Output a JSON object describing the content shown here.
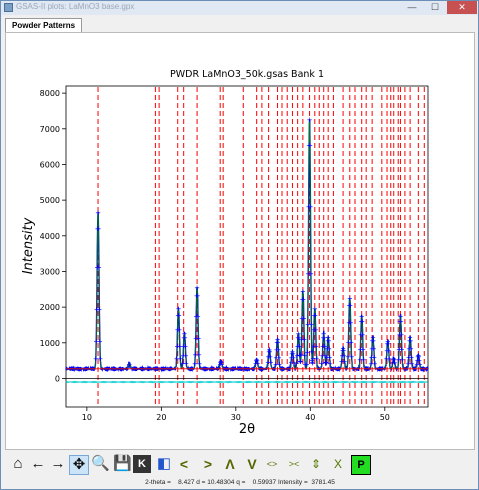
{
  "window": {
    "title": "GSAS-II plots: LaMnO3 base.gpx",
    "minimize_glyph": "—",
    "maximize_glyph": "☐",
    "close_glyph": "✕"
  },
  "tabs": [
    {
      "label": "Powder Patterns"
    }
  ],
  "toolbar": {
    "buttons": [
      {
        "name": "home-icon",
        "glyph": "⌂"
      },
      {
        "name": "back-icon",
        "glyph": "←"
      },
      {
        "name": "forward-icon",
        "glyph": "→"
      },
      {
        "name": "pan-icon",
        "glyph": "✥"
      },
      {
        "name": "zoom-icon",
        "glyph": "🔍"
      },
      {
        "name": "save-icon",
        "glyph": "💾"
      },
      {
        "name": "key-icon",
        "glyph": "K"
      },
      {
        "name": "palette-icon",
        "glyph": "◧"
      },
      {
        "name": "shift-left-icon",
        "glyph": "<"
      },
      {
        "name": "shift-right-icon",
        "glyph": ">"
      },
      {
        "name": "shift-up-icon",
        "glyph": "Λ"
      },
      {
        "name": "shift-down-icon",
        "glyph": "V"
      },
      {
        "name": "expand-x-icon",
        "glyph": "<>"
      },
      {
        "name": "contract-x-icon",
        "glyph": "><"
      },
      {
        "name": "expand-y-icon",
        "glyph": "⇕"
      },
      {
        "name": "contract-y-icon",
        "glyph": "X"
      },
      {
        "name": "publish-icon",
        "glyph": "P"
      }
    ]
  },
  "status": {
    "text": "2-theta =    8.427 d = 10.48304 q =    0.59937 Intensity =  3781.45"
  },
  "colors": {
    "observed": "#0000ff",
    "calculated": "#008000",
    "background": "#ff0000",
    "difference": "#00cccc",
    "reflection_ticks": "#ff0000"
  },
  "chart_data": {
    "type": "line",
    "title": "PWDR LaMnO3_50k.gsas Bank 1",
    "xlabel": "2θ",
    "ylabel": "Intensity",
    "xlim": [
      7.2,
      55.8
    ],
    "ylim": [
      -800,
      8200
    ],
    "xticks": [
      10,
      20,
      30,
      40,
      50
    ],
    "yticks": [
      0,
      1000,
      2000,
      3000,
      4000,
      5000,
      6000,
      7000,
      8000
    ],
    "background_level": 270,
    "difference_offset": -100,
    "zero_line": 0,
    "grid": false,
    "peaks": [
      {
        "x": 11.5,
        "height": 4400
      },
      {
        "x": 15.7,
        "height": 150
      },
      {
        "x": 22.3,
        "height": 1700
      },
      {
        "x": 23.1,
        "height": 1000
      },
      {
        "x": 24.8,
        "height": 2300
      },
      {
        "x": 28.0,
        "height": 230
      },
      {
        "x": 32.8,
        "height": 280
      },
      {
        "x": 34.5,
        "height": 550
      },
      {
        "x": 35.6,
        "height": 850
      },
      {
        "x": 37.6,
        "height": 500
      },
      {
        "x": 38.4,
        "height": 1000
      },
      {
        "x": 39.0,
        "height": 2200
      },
      {
        "x": 39.9,
        "height": 7000
      },
      {
        "x": 40.6,
        "height": 1700
      },
      {
        "x": 41.8,
        "height": 1000
      },
      {
        "x": 42.4,
        "height": 900
      },
      {
        "x": 44.4,
        "height": 600
      },
      {
        "x": 45.3,
        "height": 2000
      },
      {
        "x": 46.9,
        "height": 1500
      },
      {
        "x": 48.4,
        "height": 900
      },
      {
        "x": 50.4,
        "height": 800
      },
      {
        "x": 51.2,
        "height": 300
      },
      {
        "x": 52.1,
        "height": 1500
      },
      {
        "x": 53.4,
        "height": 900
      },
      {
        "x": 54.5,
        "height": 400
      }
    ],
    "reflections": [
      11.5,
      19.2,
      19.7,
      22.2,
      23.0,
      24.8,
      27.9,
      28.3,
      31.0,
      32.8,
      33.5,
      34.4,
      35.6,
      36.2,
      36.9,
      37.6,
      38.3,
      39.0,
      39.9,
      40.6,
      41.2,
      41.8,
      42.4,
      43.1,
      44.4,
      45.3,
      46.0,
      46.9,
      47.5,
      48.3,
      49.6,
      50.3,
      50.8,
      51.2,
      51.8,
      52.1,
      52.7,
      53.4,
      54.5,
      55.3
    ]
  }
}
